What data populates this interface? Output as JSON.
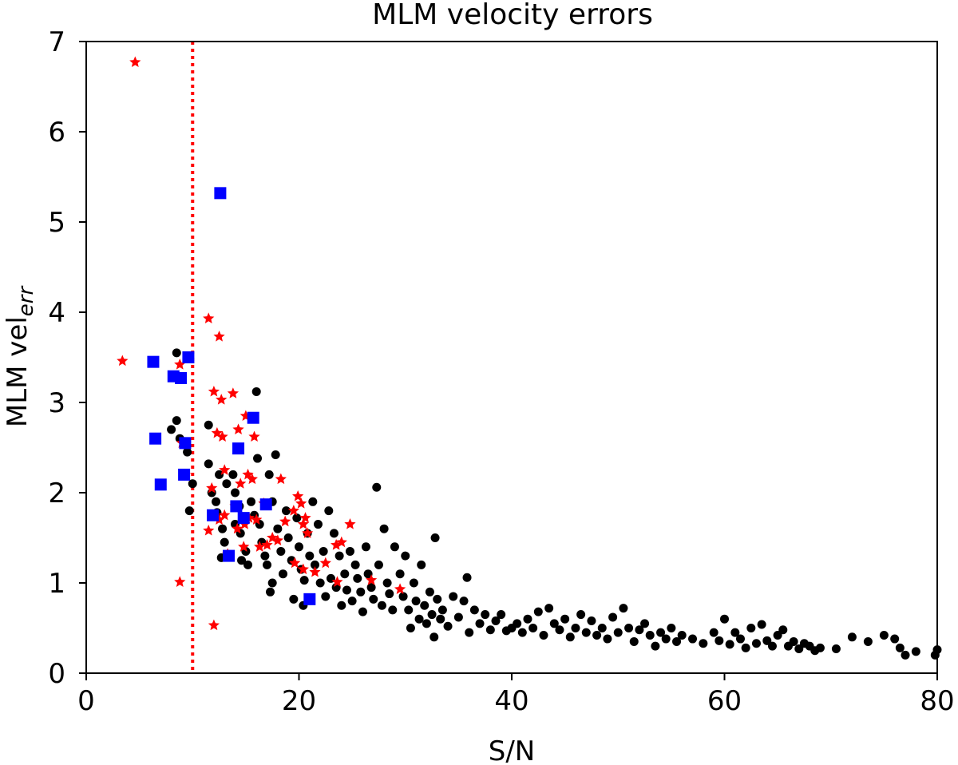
{
  "chart_data": {
    "type": "scatter",
    "title": "MLM velocity errors",
    "xlabel": "S/N",
    "ylabel_main": "MLM vel",
    "ylabel_sub": "err",
    "xlim": [
      0,
      80
    ],
    "ylim": [
      0,
      7
    ],
    "xticks": [
      0,
      20,
      40,
      60,
      80
    ],
    "yticks": [
      0,
      1,
      2,
      3,
      4,
      5,
      6,
      7
    ],
    "grid": false,
    "threshold_line": {
      "axis": "x",
      "value": 10,
      "style": "dotted",
      "color": "#ff0000"
    },
    "series": [
      {
        "name": "black points",
        "marker": "circle",
        "color": "#000000",
        "points": [
          [
            8.5,
            3.55
          ],
          [
            8.0,
            2.7
          ],
          [
            8.5,
            2.8
          ],
          [
            8.8,
            2.6
          ],
          [
            9.5,
            2.45
          ],
          [
            9.7,
            1.8
          ],
          [
            10.0,
            2.1
          ],
          [
            11.5,
            2.75
          ],
          [
            11.5,
            2.32
          ],
          [
            11.8,
            2.0
          ],
          [
            12.2,
            1.9
          ],
          [
            12.5,
            2.2
          ],
          [
            12.3,
            1.78
          ],
          [
            12.8,
            1.6
          ],
          [
            13.0,
            1.45
          ],
          [
            12.7,
            1.28
          ],
          [
            13.5,
            1.3
          ],
          [
            13.2,
            2.1
          ],
          [
            13.8,
            2.2
          ],
          [
            14.0,
            2.0
          ],
          [
            14.4,
            1.85
          ],
          [
            14.0,
            1.65
          ],
          [
            14.5,
            1.55
          ],
          [
            14.6,
            1.25
          ],
          [
            15.0,
            1.35
          ],
          [
            15.2,
            1.2
          ],
          [
            15.5,
            1.9
          ],
          [
            15.8,
            1.75
          ],
          [
            16.0,
            3.12
          ],
          [
            16.1,
            2.38
          ],
          [
            16.3,
            1.65
          ],
          [
            16.5,
            1.45
          ],
          [
            16.8,
            1.3
          ],
          [
            17.0,
            1.2
          ],
          [
            17.2,
            2.2
          ],
          [
            17.5,
            1.9
          ],
          [
            17.8,
            2.42
          ],
          [
            17.5,
            1.0
          ],
          [
            17.3,
            0.9
          ],
          [
            18.0,
            1.6
          ],
          [
            18.3,
            1.35
          ],
          [
            18.5,
            1.1
          ],
          [
            18.8,
            1.8
          ],
          [
            19.0,
            1.5
          ],
          [
            19.3,
            1.25
          ],
          [
            19.5,
            0.82
          ],
          [
            19.8,
            1.72
          ],
          [
            20.0,
            1.4
          ],
          [
            20.2,
            1.15
          ],
          [
            20.5,
            1.03
          ],
          [
            20.4,
            0.75
          ],
          [
            20.8,
            1.55
          ],
          [
            21.0,
            1.3
          ],
          [
            21.3,
            1.9
          ],
          [
            21.5,
            1.2
          ],
          [
            21.8,
            1.65
          ],
          [
            22.0,
            1.0
          ],
          [
            22.3,
            1.35
          ],
          [
            22.5,
            0.85
          ],
          [
            22.8,
            1.8
          ],
          [
            23.0,
            1.05
          ],
          [
            23.3,
            1.55
          ],
          [
            23.5,
            0.95
          ],
          [
            23.8,
            1.3
          ],
          [
            24.0,
            0.75
          ],
          [
            24.3,
            1.1
          ],
          [
            24.5,
            0.92
          ],
          [
            24.8,
            1.35
          ],
          [
            25.0,
            0.8
          ],
          [
            25.3,
            1.2
          ],
          [
            25.5,
            1.05
          ],
          [
            25.8,
            0.9
          ],
          [
            26.0,
            0.68
          ],
          [
            26.3,
            1.4
          ],
          [
            26.5,
            1.1
          ],
          [
            26.8,
            0.95
          ],
          [
            27.0,
            0.82
          ],
          [
            27.3,
            2.06
          ],
          [
            27.5,
            1.2
          ],
          [
            27.8,
            0.75
          ],
          [
            28.0,
            1.6
          ],
          [
            28.3,
            1.0
          ],
          [
            28.5,
            0.88
          ],
          [
            28.8,
            0.7
          ],
          [
            29.0,
            1.4
          ],
          [
            29.5,
            1.1
          ],
          [
            29.8,
            0.85
          ],
          [
            30.0,
            1.3
          ],
          [
            30.3,
            0.7
          ],
          [
            30.5,
            0.5
          ],
          [
            30.8,
            1.0
          ],
          [
            31.0,
            0.8
          ],
          [
            31.3,
            0.6
          ],
          [
            31.5,
            1.2
          ],
          [
            31.8,
            0.75
          ],
          [
            32.0,
            0.55
          ],
          [
            32.3,
            0.9
          ],
          [
            32.5,
            0.65
          ],
          [
            32.8,
            1.5
          ],
          [
            32.7,
            0.4
          ],
          [
            33.0,
            0.82
          ],
          [
            33.3,
            0.6
          ],
          [
            33.5,
            0.7
          ],
          [
            34.0,
            0.52
          ],
          [
            34.5,
            0.85
          ],
          [
            35.0,
            0.62
          ],
          [
            35.5,
            0.8
          ],
          [
            35.8,
            1.06
          ],
          [
            36.0,
            0.45
          ],
          [
            36.5,
            0.7
          ],
          [
            37.0,
            0.55
          ],
          [
            37.5,
            0.65
          ],
          [
            38.0,
            0.48
          ],
          [
            38.5,
            0.58
          ],
          [
            39.0,
            0.65
          ],
          [
            39.5,
            0.47
          ],
          [
            40.0,
            0.5
          ],
          [
            40.5,
            0.55
          ],
          [
            41.0,
            0.45
          ],
          [
            41.5,
            0.6
          ],
          [
            42.0,
            0.5
          ],
          [
            42.5,
            0.68
          ],
          [
            43.0,
            0.42
          ],
          [
            43.5,
            0.72
          ],
          [
            44.0,
            0.55
          ],
          [
            44.5,
            0.48
          ],
          [
            45.0,
            0.6
          ],
          [
            45.5,
            0.4
          ],
          [
            46.0,
            0.5
          ],
          [
            46.5,
            0.65
          ],
          [
            47.0,
            0.45
          ],
          [
            47.5,
            0.58
          ],
          [
            48.0,
            0.42
          ],
          [
            48.5,
            0.5
          ],
          [
            49.0,
            0.38
          ],
          [
            49.5,
            0.62
          ],
          [
            50.0,
            0.45
          ],
          [
            50.5,
            0.72
          ],
          [
            51.0,
            0.5
          ],
          [
            51.5,
            0.35
          ],
          [
            52.0,
            0.48
          ],
          [
            52.5,
            0.55
          ],
          [
            53.0,
            0.42
          ],
          [
            53.5,
            0.3
          ],
          [
            54.0,
            0.45
          ],
          [
            54.5,
            0.38
          ],
          [
            55.0,
            0.5
          ],
          [
            55.5,
            0.35
          ],
          [
            56.0,
            0.42
          ],
          [
            57.0,
            0.38
          ],
          [
            58.0,
            0.33
          ],
          [
            59.0,
            0.45
          ],
          [
            59.5,
            0.36
          ],
          [
            60.0,
            0.6
          ],
          [
            60.5,
            0.32
          ],
          [
            61.0,
            0.45
          ],
          [
            61.5,
            0.38
          ],
          [
            62.0,
            0.28
          ],
          [
            62.5,
            0.5
          ],
          [
            63.0,
            0.33
          ],
          [
            63.5,
            0.54
          ],
          [
            64.0,
            0.36
          ],
          [
            64.5,
            0.3
          ],
          [
            65.0,
            0.42
          ],
          [
            65.5,
            0.48
          ],
          [
            66.0,
            0.3
          ],
          [
            66.5,
            0.35
          ],
          [
            67.0,
            0.27
          ],
          [
            67.5,
            0.33
          ],
          [
            68.0,
            0.3
          ],
          [
            68.5,
            0.25
          ],
          [
            69.0,
            0.28
          ],
          [
            70.5,
            0.27
          ],
          [
            72.0,
            0.4
          ],
          [
            73.5,
            0.35
          ],
          [
            75.0,
            0.42
          ],
          [
            76.0,
            0.38
          ],
          [
            76.5,
            0.28
          ],
          [
            77.0,
            0.2
          ],
          [
            78.0,
            0.24
          ],
          [
            79.8,
            0.2
          ],
          [
            80.0,
            0.26
          ]
        ]
      },
      {
        "name": "red stars",
        "marker": "star",
        "color": "#ff0000",
        "points": [
          [
            4.6,
            6.77
          ],
          [
            3.4,
            3.46
          ],
          [
            8.8,
            3.42
          ],
          [
            8.2,
            3.28
          ],
          [
            6.5,
            2.6
          ],
          [
            9.0,
            2.55
          ],
          [
            9.3,
            2.2
          ],
          [
            7.0,
            2.09
          ],
          [
            8.8,
            1.01
          ],
          [
            11.5,
            3.93
          ],
          [
            12.5,
            3.73
          ],
          [
            12.0,
            3.12
          ],
          [
            12.7,
            3.03
          ],
          [
            13.8,
            3.1
          ],
          [
            12.3,
            2.66
          ],
          [
            12.8,
            2.62
          ],
          [
            14.3,
            2.7
          ],
          [
            15.0,
            2.85
          ],
          [
            15.8,
            2.62
          ],
          [
            13.0,
            2.25
          ],
          [
            14.5,
            2.1
          ],
          [
            15.2,
            2.2
          ],
          [
            15.6,
            2.15
          ],
          [
            11.8,
            2.05
          ],
          [
            12.5,
            1.7
          ],
          [
            13.0,
            1.75
          ],
          [
            14.0,
            1.85
          ],
          [
            14.2,
            1.6
          ],
          [
            14.9,
            1.65
          ],
          [
            15.3,
            1.72
          ],
          [
            16.0,
            1.7
          ],
          [
            16.7,
            1.88
          ],
          [
            11.5,
            1.58
          ],
          [
            13.3,
            1.32
          ],
          [
            14.8,
            1.4
          ],
          [
            16.3,
            1.4
          ],
          [
            17.0,
            1.42
          ],
          [
            17.5,
            1.5
          ],
          [
            18.0,
            1.47
          ],
          [
            18.3,
            2.15
          ],
          [
            18.7,
            1.68
          ],
          [
            19.5,
            1.8
          ],
          [
            19.9,
            1.96
          ],
          [
            20.2,
            1.88
          ],
          [
            20.6,
            1.72
          ],
          [
            20.8,
            1.55
          ],
          [
            20.4,
            1.65
          ],
          [
            19.6,
            1.22
          ],
          [
            20.4,
            1.15
          ],
          [
            21.5,
            1.12
          ],
          [
            22.5,
            1.22
          ],
          [
            23.5,
            1.42
          ],
          [
            24.0,
            1.45
          ],
          [
            24.8,
            1.65
          ],
          [
            23.6,
            1.01
          ],
          [
            26.8,
            1.03
          ],
          [
            29.5,
            0.93
          ],
          [
            12.0,
            0.53
          ]
        ]
      },
      {
        "name": "blue squares",
        "marker": "square",
        "color": "#0000ff",
        "points": [
          [
            12.6,
            5.32
          ],
          [
            6.3,
            3.45
          ],
          [
            9.6,
            3.5
          ],
          [
            8.2,
            3.29
          ],
          [
            8.9,
            3.27
          ],
          [
            6.5,
            2.6
          ],
          [
            9.3,
            2.55
          ],
          [
            9.2,
            2.2
          ],
          [
            7.0,
            2.09
          ],
          [
            15.7,
            2.83
          ],
          [
            14.3,
            2.49
          ],
          [
            11.9,
            1.75
          ],
          [
            14.1,
            1.85
          ],
          [
            14.8,
            1.72
          ],
          [
            16.9,
            1.87
          ],
          [
            13.4,
            1.3
          ],
          [
            21.0,
            0.82
          ]
        ]
      }
    ]
  }
}
